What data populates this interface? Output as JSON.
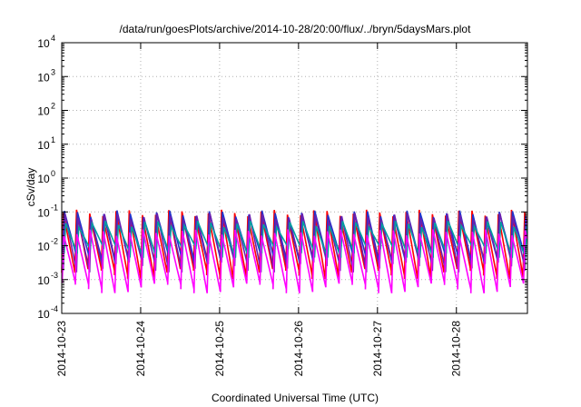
{
  "chart_data": {
    "type": "line",
    "title": "/data/run/goesPlots/archive/2014-10-28/20:00/flux/../bryn/5daysMars.plot",
    "xlabel": "Coordinated Universal Time (UTC)",
    "ylabel": "cSv/day",
    "yscale": "log",
    "ylim": [
      0.0001,
      10000
    ],
    "xlim": [
      0,
      5.9
    ],
    "y_ticks": [
      {
        "value": 0.0001,
        "base": "10",
        "exp": "-4"
      },
      {
        "value": 0.001,
        "base": "10",
        "exp": "-3"
      },
      {
        "value": 0.01,
        "base": "10",
        "exp": "-2"
      },
      {
        "value": 0.1,
        "base": "10",
        "exp": "-1"
      },
      {
        "value": 1,
        "base": "10",
        "exp": "0"
      },
      {
        "value": 10,
        "base": "10",
        "exp": "1"
      },
      {
        "value": 100,
        "base": "10",
        "exp": "2"
      },
      {
        "value": 1000,
        "base": "10",
        "exp": "3"
      },
      {
        "value": 10000,
        "base": "10",
        "exp": "4"
      }
    ],
    "x_ticks": [
      {
        "value": 0,
        "label": "2014-10-23"
      },
      {
        "value": 1,
        "label": "2014-10-24"
      },
      {
        "value": 2,
        "label": "2014-10-25"
      },
      {
        "value": 3,
        "label": "2014-10-26"
      },
      {
        "value": 4,
        "label": "2014-10-27"
      },
      {
        "value": 5,
        "label": "2014-10-28"
      }
    ],
    "grid": true,
    "series": [
      {
        "color": "#ff0000",
        "peak": 0.095,
        "trough": 0.0016,
        "phase": 0.0
      },
      {
        "color": "#2233cc",
        "peak": 0.09,
        "trough": 0.0045,
        "phase": 0.012
      },
      {
        "color": "#6a1fb0",
        "peak": 0.075,
        "trough": 0.0025,
        "phase": 0.02
      },
      {
        "color": "#00a0a0",
        "peak": 0.045,
        "trough": 0.0065,
        "phase": 0.03
      },
      {
        "color": "#ff00ff",
        "peak": 0.025,
        "trough": 0.0006,
        "phase": 0.006
      }
    ],
    "cycle_days": 0.167
  }
}
